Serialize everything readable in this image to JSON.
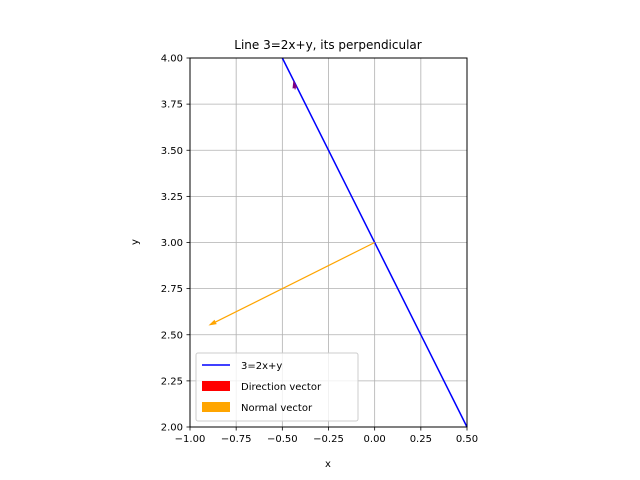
{
  "chart_data": {
    "type": "line",
    "title": "Line 3=2x+y, its perpendicular",
    "xlabel": "x",
    "ylabel": "y",
    "xlim": [
      -1.0,
      0.5
    ],
    "ylim": [
      2.0,
      4.0
    ],
    "xticks": [
      -1.0,
      -0.75,
      -0.5,
      -0.25,
      0.0,
      0.25,
      0.5
    ],
    "xtick_labels": [
      "−1.00",
      "−0.75",
      "−0.50",
      "−0.25",
      "0.00",
      "0.25",
      "0.50"
    ],
    "yticks": [
      2.0,
      2.25,
      2.5,
      2.75,
      3.0,
      3.25,
      3.5,
      3.75,
      4.0
    ],
    "ytick_labels": [
      "2.00",
      "2.25",
      "2.50",
      "2.75",
      "3.00",
      "3.25",
      "3.50",
      "3.75",
      "4.00"
    ],
    "grid": true,
    "legend_position": "lower-left",
    "series": [
      {
        "name": "3=2x+y",
        "kind": "line",
        "color": "#0000ff",
        "x": [
          -0.5,
          0.5
        ],
        "y": [
          4.0,
          2.0
        ]
      }
    ],
    "vectors": [
      {
        "name": "Direction vector",
        "legend_color": "#ff0000",
        "color": "#800080",
        "start": [
          -0.43,
          3.83
        ],
        "end": [
          -0.44,
          3.88
        ]
      },
      {
        "name": "Normal vector",
        "legend_color": "#ffa500",
        "color": "#ffa500",
        "start": [
          0.0,
          3.0
        ],
        "end": [
          -0.9,
          2.55
        ]
      }
    ]
  }
}
